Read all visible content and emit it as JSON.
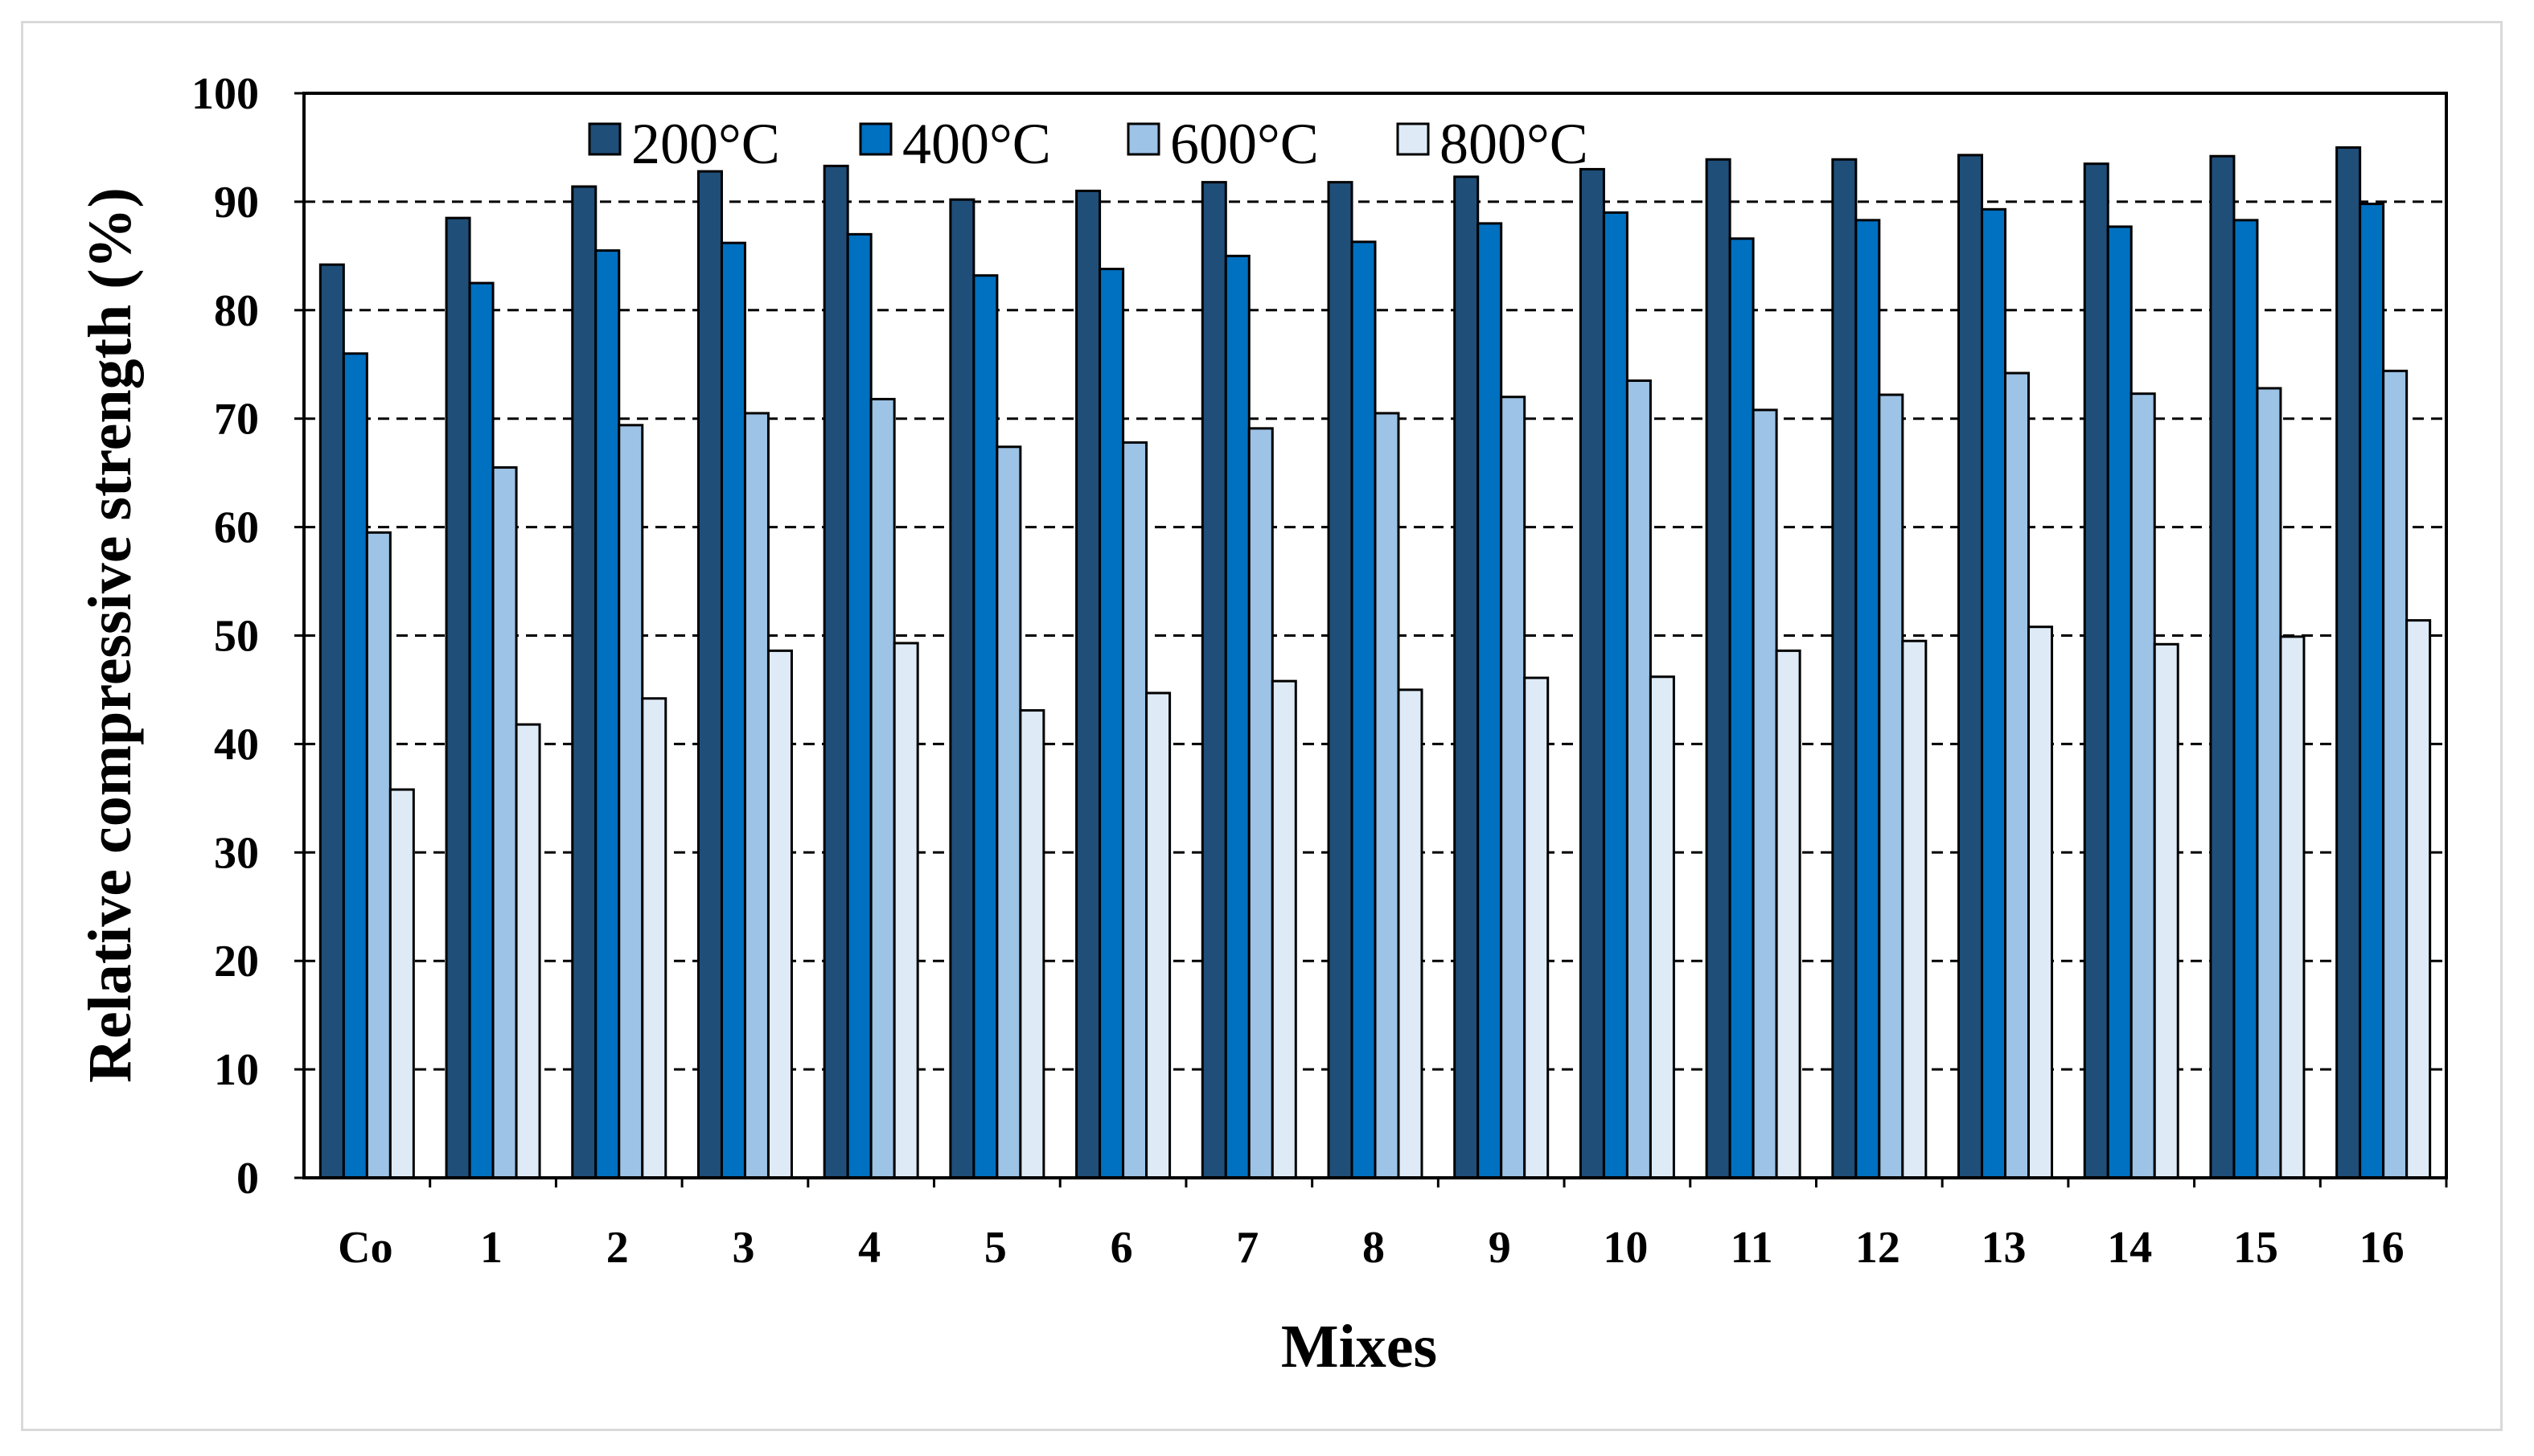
{
  "chart_data": {
    "type": "bar",
    "title": "",
    "xlabel": "Mixes",
    "ylabel": "Relative compressive strength (%)",
    "ylim": [
      0,
      100
    ],
    "yticks": [
      0,
      10,
      20,
      30,
      40,
      50,
      60,
      70,
      80,
      90,
      100
    ],
    "grid": "horizontal dashed at major ticks",
    "legend": "top, horizontal",
    "categories": [
      "Co",
      "1",
      "2",
      "3",
      "4",
      "5",
      "6",
      "7",
      "8",
      "9",
      "10",
      "11",
      "12",
      "13",
      "14",
      "15",
      "16"
    ],
    "series": [
      {
        "name": "200°C",
        "color": "#1f4e79",
        "values": [
          84.2,
          88.5,
          91.4,
          92.8,
          93.3,
          90.2,
          91.0,
          91.8,
          91.8,
          92.3,
          93.0,
          93.9,
          93.9,
          94.3,
          93.5,
          94.2,
          95.0
        ]
      },
      {
        "name": "400°C",
        "color": "#0070c0",
        "values": [
          76.0,
          82.5,
          85.5,
          86.2,
          87.0,
          83.2,
          83.8,
          85.0,
          86.3,
          88.0,
          89.0,
          86.6,
          88.3,
          89.3,
          87.7,
          88.3,
          89.8
        ]
      },
      {
        "name": "600°C",
        "color": "#9dc3e6",
        "values": [
          59.5,
          65.5,
          69.4,
          70.5,
          71.8,
          67.4,
          67.8,
          69.1,
          70.5,
          72.0,
          73.5,
          70.8,
          72.2,
          74.2,
          72.3,
          72.8,
          74.4
        ]
      },
      {
        "name": "800°C",
        "color": "#deebf7",
        "values": [
          35.8,
          41.8,
          44.2,
          48.6,
          49.3,
          43.1,
          44.7,
          45.8,
          45.0,
          46.1,
          46.2,
          48.6,
          49.5,
          50.8,
          49.2,
          49.9,
          51.4
        ]
      }
    ]
  }
}
